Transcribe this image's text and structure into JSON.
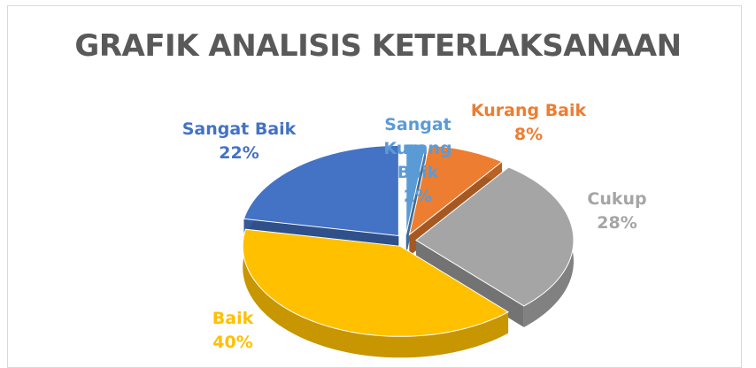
{
  "chart_data": {
    "type": "pie",
    "title": "GRAFIK ANALISIS KETERLAKSANAAN",
    "categories": [
      "Sangat Kurang Baik",
      "Kurang Baik",
      "Cukup",
      "Baik",
      "Sangat Baik"
    ],
    "values": [
      2,
      8,
      28,
      40,
      22
    ],
    "value_labels": [
      "2%",
      "8%",
      "28%",
      "40%",
      "22%"
    ],
    "colors": [
      "#5b9bd5",
      "#ed7d31",
      "#a5a5a5",
      "#ffc000",
      "#4472c4"
    ]
  }
}
